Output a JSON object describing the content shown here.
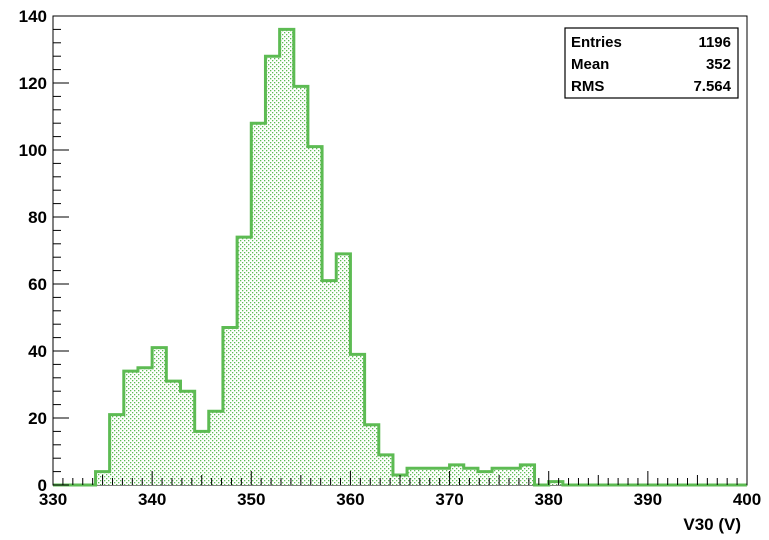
{
  "chart_data": {
    "type": "bar",
    "histogram": true,
    "xlabel": "V30 (V)",
    "ylabel": "",
    "xlim": [
      330,
      400
    ],
    "ylim": [
      0,
      140
    ],
    "bin_width": 1.43,
    "x_ticks": [
      330,
      340,
      350,
      360,
      370,
      380,
      390,
      400
    ],
    "y_ticks": [
      0,
      20,
      40,
      60,
      80,
      100,
      120,
      140
    ],
    "bin_edges": [
      330,
      331.43,
      332.86,
      334.29,
      335.71,
      337.14,
      338.57,
      340,
      341.43,
      342.86,
      344.29,
      345.71,
      347.14,
      348.57,
      350,
      351.43,
      352.86,
      354.29,
      355.71,
      357.14,
      358.57,
      360,
      361.43,
      362.86,
      364.29,
      365.71,
      367.14,
      368.57,
      370,
      371.43,
      372.86,
      374.29,
      375.71,
      377.14,
      378.57,
      380,
      381.43,
      382.86,
      384.29,
      385.71,
      387.14,
      388.57,
      390,
      391.43,
      392.86,
      394.29,
      395.71,
      397.14,
      398.57,
      400
    ],
    "values": [
      0,
      0,
      0,
      4,
      21,
      34,
      35,
      41,
      31,
      28,
      16,
      22,
      47,
      74,
      108,
      128,
      136,
      119,
      101,
      61,
      69,
      39,
      18,
      9,
      3,
      5,
      5,
      5,
      6,
      5,
      4,
      5,
      5,
      6,
      0,
      1,
      0,
      0,
      0,
      0,
      0,
      0,
      0,
      0,
      0,
      0,
      0,
      0,
      0
    ],
    "line_color": "#5dbb53",
    "fill_color": "#5dbb53",
    "fill_style": "dotted",
    "stats_box": {
      "position": "top-right",
      "rows": [
        {
          "label": "Entries",
          "value": "1196"
        },
        {
          "label": "Mean",
          "value": "352"
        },
        {
          "label": "RMS",
          "value": "7.564"
        }
      ]
    }
  }
}
